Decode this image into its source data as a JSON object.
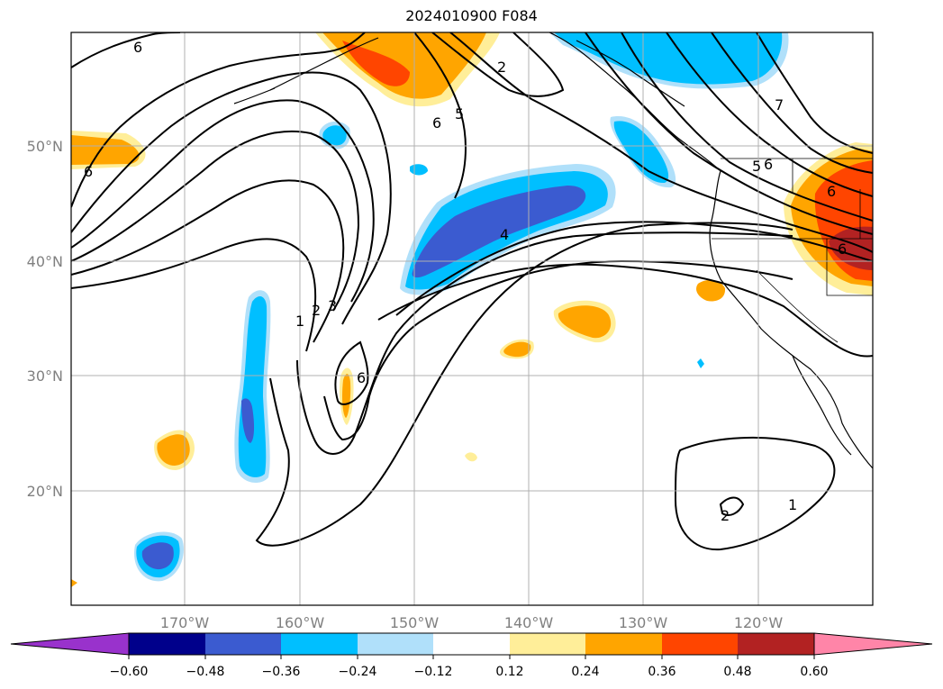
{
  "title": "2024010900 F084",
  "map": {
    "lat_labels": [
      "50°N",
      "40°N",
      "30°N",
      "20°N"
    ],
    "lon_labels": [
      "170°W",
      "160°W",
      "150°W",
      "140°W",
      "130°W",
      "120°W"
    ],
    "contour_labels": [
      "6",
      "6",
      "2",
      "5",
      "6",
      "4",
      "1",
      "2",
      "3",
      "6",
      "7",
      "6",
      "5",
      "6",
      "2",
      "1",
      "6"
    ],
    "shading_colors": {
      "neg_1": "#b0e0fa",
      "neg_2": "#00bfff",
      "neg_3": "#3b5bd0",
      "pos_1": "#ffee99",
      "pos_2": "#ffa500",
      "pos_3": "#ff4500",
      "pos_4": "#b22222"
    }
  },
  "colorbar": {
    "ticks": [
      "−0.60",
      "−0.48",
      "−0.36",
      "−0.24",
      "−0.12",
      "0.12",
      "0.24",
      "0.36",
      "0.48",
      "0.60"
    ],
    "colors": [
      "#9932cc",
      "#00008b",
      "#3b5bd0",
      "#00bfff",
      "#b0e0fa",
      "#ffffff",
      "#ffee99",
      "#ffa500",
      "#ff4500",
      "#b22222",
      "#ff85a8"
    ]
  }
}
